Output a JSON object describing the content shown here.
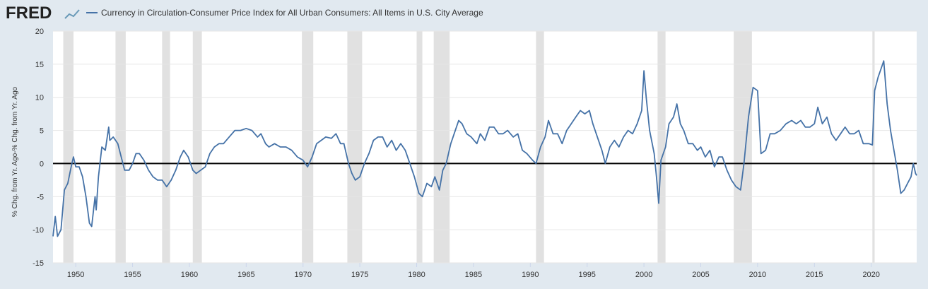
{
  "chart_data": {
    "type": "line",
    "brand": "FRED",
    "ylabel": "% Chg. from Yr. Ago-% Chg. from Yr. Ago",
    "series": [
      {
        "name": "Currency in Circulation-Consumer Price Index for All Urban Consumers: All Items in U.S. City Average",
        "color": "#4572a7",
        "x": [
          1948.0,
          1948.2,
          1948.4,
          1948.7,
          1949.0,
          1949.3,
          1949.6,
          1949.8,
          1950.0,
          1950.3,
          1950.6,
          1950.9,
          1951.2,
          1951.4,
          1951.7,
          1951.8,
          1952.0,
          1952.3,
          1952.6,
          1952.9,
          1953.0,
          1953.3,
          1953.7,
          1954.0,
          1954.3,
          1954.7,
          1955.0,
          1955.3,
          1955.6,
          1956.0,
          1956.4,
          1956.8,
          1957.2,
          1957.6,
          1958.0,
          1958.4,
          1958.8,
          1959.2,
          1959.5,
          1959.9,
          1960.3,
          1960.6,
          1961.0,
          1961.4,
          1961.8,
          1962.2,
          1962.6,
          1963.0,
          1963.5,
          1964.0,
          1964.5,
          1965.0,
          1965.5,
          1966.0,
          1966.3,
          1966.7,
          1967.0,
          1967.5,
          1968.0,
          1968.5,
          1969.0,
          1969.5,
          1970.0,
          1970.4,
          1970.8,
          1971.2,
          1971.6,
          1972.0,
          1972.5,
          1972.9,
          1973.3,
          1973.6,
          1974.0,
          1974.3,
          1974.6,
          1975.0,
          1975.4,
          1975.8,
          1976.2,
          1976.6,
          1977.0,
          1977.4,
          1977.8,
          1978.2,
          1978.6,
          1979.0,
          1979.4,
          1979.8,
          1980.2,
          1980.5,
          1980.9,
          1981.3,
          1981.6,
          1982.0,
          1982.3,
          1982.6,
          1983.0,
          1983.4,
          1983.7,
          1984.0,
          1984.4,
          1984.8,
          1985.3,
          1985.6,
          1986.0,
          1986.4,
          1986.8,
          1987.2,
          1987.6,
          1988.0,
          1988.5,
          1988.9,
          1989.3,
          1989.7,
          1990.2,
          1990.5,
          1990.9,
          1991.3,
          1991.6,
          1992.0,
          1992.4,
          1992.8,
          1993.2,
          1993.6,
          1994.0,
          1994.4,
          1994.8,
          1995.2,
          1995.5,
          1995.9,
          1996.3,
          1996.6,
          1997.0,
          1997.4,
          1997.8,
          1998.2,
          1998.6,
          1999.0,
          1999.4,
          1999.8,
          2000.0,
          2000.2,
          2000.5,
          2000.9,
          2001.1,
          2001.3,
          2001.5,
          2001.9,
          2002.2,
          2002.6,
          2002.9,
          2003.2,
          2003.5,
          2003.9,
          2004.3,
          2004.7,
          2005.0,
          2005.4,
          2005.8,
          2006.2,
          2006.6,
          2006.9,
          2007.3,
          2007.7,
          2008.1,
          2008.5,
          2008.8,
          2009.2,
          2009.6,
          2010.0,
          2010.3,
          2010.7,
          2011.1,
          2011.5,
          2012.0,
          2012.5,
          2013.0,
          2013.4,
          2013.8,
          2014.2,
          2014.6,
          2015.0,
          2015.3,
          2015.7,
          2016.1,
          2016.5,
          2016.9,
          2017.3,
          2017.7,
          2018.1,
          2018.5,
          2018.9,
          2019.3,
          2019.8,
          2020.1,
          2020.3,
          2020.6,
          2020.9,
          2021.1,
          2021.4,
          2021.7,
          2022.0,
          2022.3,
          2022.6,
          2022.9,
          2023.2,
          2023.5,
          2023.7,
          2023.9,
          2024.0
        ],
        "values": [
          -11,
          -8,
          -11,
          -10,
          -4,
          -3,
          -0.5,
          1,
          -0.5,
          -0.5,
          -2,
          -5,
          -9,
          -9.5,
          -5,
          -7,
          -2,
          2.5,
          2,
          5.5,
          3.5,
          4,
          3,
          1,
          -1,
          -1,
          0,
          1.5,
          1.5,
          0.5,
          -1,
          -2,
          -2.5,
          -2.5,
          -3.5,
          -2.5,
          -1,
          1,
          2,
          1,
          -1,
          -1.5,
          -1,
          -0.5,
          1.5,
          2.5,
          3,
          3,
          4,
          5,
          5,
          5.3,
          5,
          4,
          4.5,
          3,
          2.5,
          3,
          2.5,
          2.5,
          2,
          1,
          0.5,
          -0.5,
          1,
          3,
          3.5,
          4,
          3.8,
          4.5,
          3,
          3,
          0,
          -1.5,
          -2.5,
          -2,
          0,
          1.5,
          3.5,
          4,
          4,
          2.5,
          3.5,
          2,
          3,
          2,
          0,
          -2,
          -4.5,
          -5,
          -3,
          -3.5,
          -2,
          -4,
          -1,
          0,
          3,
          5,
          6.5,
          6,
          4.5,
          4,
          3,
          4.5,
          3.5,
          5.5,
          5.5,
          4.5,
          4.5,
          5,
          4,
          4.5,
          2,
          1.5,
          0.5,
          0,
          2.5,
          4,
          6.5,
          4.5,
          4.5,
          3,
          5,
          6,
          7,
          8,
          7.5,
          8,
          6,
          4,
          2,
          0,
          2.5,
          3.5,
          2.5,
          4,
          5,
          4.5,
          6,
          8,
          14,
          10,
          5,
          1.5,
          -2,
          -6,
          0.5,
          2.5,
          6,
          7,
          9,
          6,
          5,
          3,
          3,
          2,
          2.5,
          1,
          2,
          -0.5,
          1,
          1,
          -1,
          -2.5,
          -3.5,
          -4,
          0,
          7,
          11.5,
          11,
          1.5,
          2,
          4.5,
          4.5,
          5,
          6,
          6.5,
          6,
          6.5,
          5.5,
          5.5,
          6,
          8.5,
          6,
          7,
          4.5,
          3.5,
          4.5,
          5.5,
          4.5,
          4.5,
          5,
          3,
          3,
          2.8,
          11,
          13,
          14.5,
          15.5,
          9,
          5,
          2,
          -1,
          -4.5,
          -4,
          -3,
          -2,
          0,
          -1.5,
          -1.8
        ]
      }
    ],
    "recessions": [
      [
        1948.9,
        1949.8
      ],
      [
        1953.5,
        1954.4
      ],
      [
        1957.6,
        1958.3
      ],
      [
        1960.3,
        1961.1
      ],
      [
        1969.9,
        1970.9
      ],
      [
        1973.9,
        1975.2
      ],
      [
        1980.0,
        1980.5
      ],
      [
        1981.5,
        1982.9
      ],
      [
        1990.5,
        1991.2
      ],
      [
        2001.2,
        2001.9
      ],
      [
        2007.9,
        2009.5
      ],
      [
        2020.1,
        2020.3
      ]
    ],
    "xlim": [
      1948,
      2024
    ],
    "xticks": [
      1950,
      1955,
      1960,
      1965,
      1970,
      1975,
      1980,
      1985,
      1990,
      1995,
      2000,
      2005,
      2010,
      2015,
      2020
    ],
    "ylim": [
      -15,
      20
    ],
    "yticks": [
      -15,
      -10,
      -5,
      0,
      5,
      10,
      15,
      20
    ],
    "grid": true,
    "zero_line": true
  }
}
